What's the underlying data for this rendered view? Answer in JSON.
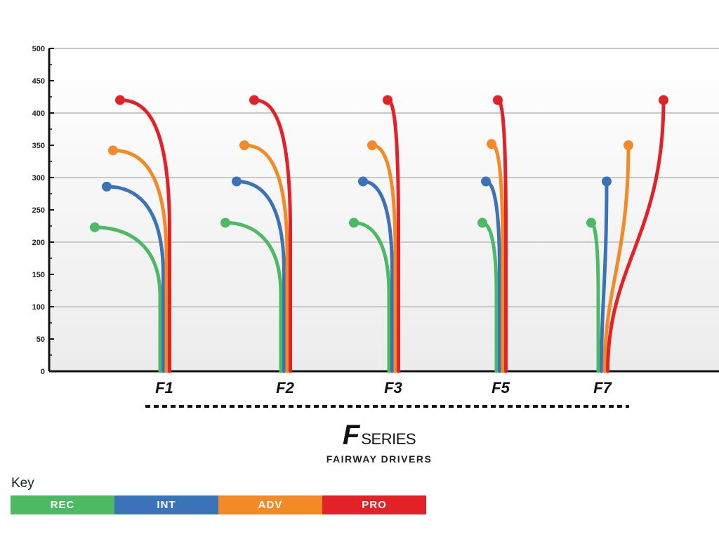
{
  "chart_data": {
    "type": "line",
    "categories": [
      "F1",
      "F2",
      "F3",
      "F5",
      "F7"
    ],
    "ylim": [
      0,
      500
    ],
    "yticks": [
      "0",
      "50",
      "100",
      "150",
      "200",
      "250",
      "300",
      "350",
      "400",
      "450",
      "500"
    ],
    "grid": true,
    "series": [
      {
        "name": "REC",
        "color": "#4cb963",
        "values": [
          223,
          230,
          230,
          230,
          230
        ]
      },
      {
        "name": "INT",
        "color": "#3b73b9",
        "values": [
          286,
          294,
          294,
          294,
          294
        ]
      },
      {
        "name": "ADV",
        "color": "#f28a25",
        "values": [
          342,
          350,
          350,
          352,
          350
        ]
      },
      {
        "name": "PRO",
        "color": "#e32228",
        "values": [
          420,
          420,
          420,
          420,
          420
        ]
      }
    ]
  },
  "brand": {
    "logo_letter": "F",
    "logo_word": "SERIES",
    "subtitle": "FAIRWAY DRIVERS"
  },
  "key": {
    "title": "Key",
    "items": [
      {
        "label": "REC",
        "color": "#4cb963"
      },
      {
        "label": "INT",
        "color": "#3b73b9"
      },
      {
        "label": "ADV",
        "color": "#f28a25"
      },
      {
        "label": "PRO",
        "color": "#e32228"
      }
    ]
  }
}
